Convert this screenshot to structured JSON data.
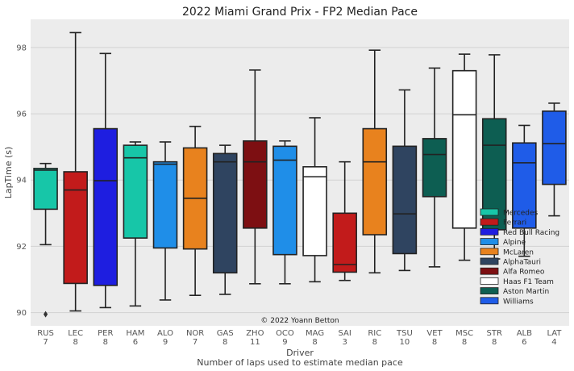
{
  "chart_data": {
    "type": "box",
    "title": "2022 Miami Grand Prix - FP2 Median Pace",
    "xlabel": "Driver",
    "xlabel2": "Number of laps used to estimate median pace",
    "ylabel": "LapTime (s)",
    "ylim": [
      89.6,
      98.85
    ],
    "yticks": [
      90,
      92,
      94,
      96,
      98
    ],
    "grid": true,
    "legend_position": "lower-right",
    "credit": "© 2022 Yoann Betton",
    "drivers": [
      {
        "code": "RUS",
        "laps": "7",
        "team": "Mercedes",
        "min": 92.05,
        "q1": 93.12,
        "median": 94.3,
        "q3": 94.35,
        "max": 94.5,
        "fliers": [
          89.95
        ]
      },
      {
        "code": "LEC",
        "laps": "8",
        "team": "Ferrari",
        "min": 90.05,
        "q1": 90.88,
        "median": 93.7,
        "q3": 94.25,
        "max": 98.45,
        "fliers": []
      },
      {
        "code": "PER",
        "laps": "8",
        "team": "Red Bull Racing",
        "min": 90.15,
        "q1": 90.82,
        "median": 93.98,
        "q3": 95.55,
        "max": 97.82,
        "fliers": []
      },
      {
        "code": "HAM",
        "laps": "6",
        "team": "Mercedes",
        "min": 90.2,
        "q1": 92.25,
        "median": 94.67,
        "q3": 95.05,
        "max": 95.15,
        "fliers": []
      },
      {
        "code": "ALO",
        "laps": "9",
        "team": "Alpine",
        "min": 90.38,
        "q1": 91.95,
        "median": 94.48,
        "q3": 94.55,
        "max": 95.15,
        "fliers": []
      },
      {
        "code": "NOR",
        "laps": "7",
        "team": "McLaren",
        "min": 90.52,
        "q1": 91.92,
        "median": 93.45,
        "q3": 94.97,
        "max": 95.62,
        "fliers": []
      },
      {
        "code": "GAS",
        "laps": "8",
        "team": "AlphaTauri",
        "min": 90.55,
        "q1": 91.2,
        "median": 94.55,
        "q3": 94.8,
        "max": 95.05,
        "fliers": []
      },
      {
        "code": "ZHO",
        "laps": "11",
        "team": "Alfa Romeo",
        "min": 90.87,
        "q1": 92.55,
        "median": 94.55,
        "q3": 95.18,
        "max": 97.32,
        "fliers": []
      },
      {
        "code": "OCO",
        "laps": "9",
        "team": "Alpine",
        "min": 90.87,
        "q1": 91.75,
        "median": 94.6,
        "q3": 95.02,
        "max": 95.18,
        "fliers": []
      },
      {
        "code": "MAG",
        "laps": "8",
        "team": "Haas F1 Team",
        "min": 90.93,
        "q1": 91.72,
        "median": 94.1,
        "q3": 94.4,
        "max": 95.88,
        "fliers": []
      },
      {
        "code": "SAI",
        "laps": "3",
        "team": "Ferrari",
        "min": 90.97,
        "q1": 91.22,
        "median": 91.45,
        "q3": 93.0,
        "max": 94.55,
        "fliers": []
      },
      {
        "code": "RIC",
        "laps": "8",
        "team": "McLaren",
        "min": 91.2,
        "q1": 92.35,
        "median": 94.55,
        "q3": 95.55,
        "max": 97.92,
        "fliers": []
      },
      {
        "code": "TSU",
        "laps": "10",
        "team": "AlphaTauri",
        "min": 91.27,
        "q1": 91.78,
        "median": 92.98,
        "q3": 95.02,
        "max": 96.72,
        "fliers": []
      },
      {
        "code": "VET",
        "laps": "8",
        "team": "Aston Martin",
        "min": 91.38,
        "q1": 93.5,
        "median": 94.77,
        "q3": 95.25,
        "max": 97.38,
        "fliers": []
      },
      {
        "code": "MSC",
        "laps": "8",
        "team": "Haas F1 Team",
        "min": 91.58,
        "q1": 92.55,
        "median": 95.97,
        "q3": 97.3,
        "max": 97.8,
        "fliers": []
      },
      {
        "code": "STR",
        "laps": "8",
        "team": "Aston Martin",
        "min": 91.62,
        "q1": 92.5,
        "median": 95.05,
        "q3": 95.85,
        "max": 97.78,
        "fliers": []
      },
      {
        "code": "ALB",
        "laps": "6",
        "team": "Williams",
        "min": 91.7,
        "q1": 92.55,
        "median": 94.52,
        "q3": 95.12,
        "max": 95.65,
        "fliers": []
      },
      {
        "code": "LAT",
        "laps": "4",
        "team": "Williams",
        "min": 92.92,
        "q1": 93.87,
        "median": 95.1,
        "q3": 96.08,
        "max": 96.32,
        "fliers": []
      }
    ],
    "legend": [
      {
        "name": "Mercedes",
        "color": "#17c6a8"
      },
      {
        "name": "Ferrari",
        "color": "#c21b1b"
      },
      {
        "name": "Red Bull Racing",
        "color": "#1e1ee0"
      },
      {
        "name": "Alpine",
        "color": "#1f8ee8"
      },
      {
        "name": "McLaren",
        "color": "#e8821e"
      },
      {
        "name": "AlphaTauri",
        "color": "#2f4460"
      },
      {
        "name": "Alfa Romeo",
        "color": "#7d0f12"
      },
      {
        "name": "Haas F1 Team",
        "color": "#ffffff"
      },
      {
        "name": "Aston Martin",
        "color": "#0d5e52"
      },
      {
        "name": "Williams",
        "color": "#1f5ce8"
      }
    ]
  }
}
